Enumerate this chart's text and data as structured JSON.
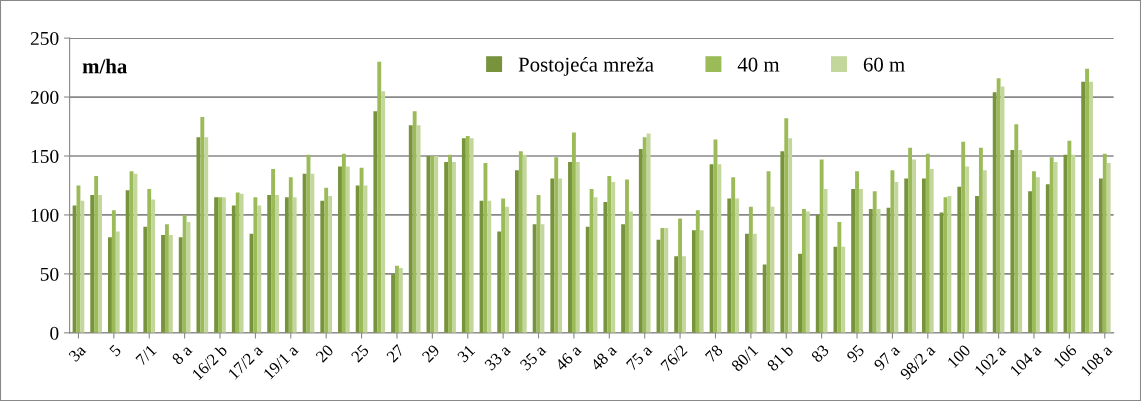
{
  "chart_data": {
    "type": "bar",
    "ylabel": "m/ha",
    "categories": [
      "3a",
      null,
      "5",
      null,
      "7/1",
      null,
      "8 a",
      null,
      "16/2 b",
      null,
      "17/2 a",
      null,
      "19/1 a",
      null,
      "20",
      null,
      "25",
      null,
      "27",
      null,
      "29",
      null,
      "31",
      null,
      "33 a",
      null,
      "35 a",
      null,
      "46 a",
      null,
      "48 a",
      null,
      "75 a",
      null,
      "76/2",
      null,
      "78",
      null,
      "80/1",
      null,
      "81 b",
      null,
      "83",
      null,
      "95",
      null,
      "97 a",
      null,
      "98/2 a",
      null,
      "100",
      null,
      "102 a",
      null,
      "104 a",
      null,
      "106",
      null,
      "108 a"
    ],
    "series": [
      {
        "name": "Postojeća mreža",
        "color": "#77933c",
        "values": [
          108,
          117,
          81,
          121,
          90,
          83,
          81,
          166,
          115,
          108,
          84,
          117,
          115,
          135,
          112,
          141,
          125,
          188,
          50,
          176,
          150,
          145,
          165,
          112,
          86,
          138,
          92,
          131,
          145,
          90,
          111,
          92,
          156,
          79,
          65,
          87,
          143,
          114,
          84,
          58,
          154,
          67,
          100,
          73,
          122,
          105,
          106,
          131,
          131,
          102,
          124,
          116,
          204,
          155,
          120,
          126,
          151,
          213,
          131
        ]
      },
      {
        "name": "40 m",
        "color": "#9bbb59",
        "values": [
          125,
          133,
          104,
          137,
          122,
          92,
          100,
          183,
          115,
          119,
          115,
          139,
          132,
          151,
          123,
          152,
          140,
          230,
          57,
          188,
          150,
          151,
          167,
          144,
          114,
          154,
          117,
          149,
          170,
          122,
          133,
          130,
          166,
          89,
          97,
          104,
          164,
          132,
          107,
          137,
          182,
          105,
          147,
          94,
          137,
          120,
          138,
          157,
          152,
          115,
          162,
          157,
          216,
          177,
          137,
          149,
          163,
          224,
          152
        ]
      },
      {
        "name": "60 m",
        "color": "#c3d69b",
        "values": [
          112,
          117,
          86,
          135,
          113,
          83,
          94,
          166,
          115,
          118,
          108,
          117,
          115,
          135,
          116,
          141,
          125,
          205,
          55,
          176,
          150,
          145,
          165,
          112,
          107,
          151,
          92,
          131,
          145,
          115,
          128,
          103,
          169,
          89,
          65,
          87,
          143,
          114,
          84,
          107,
          165,
          103,
          122,
          73,
          122,
          105,
          128,
          147,
          139,
          116,
          141,
          138,
          209,
          155,
          132,
          145,
          151,
          213,
          144
        ]
      }
    ],
    "ylim": [
      0,
      250
    ],
    "yticks": [
      0,
      50,
      100,
      150,
      200,
      250
    ],
    "grid": "y",
    "legend": "top"
  }
}
